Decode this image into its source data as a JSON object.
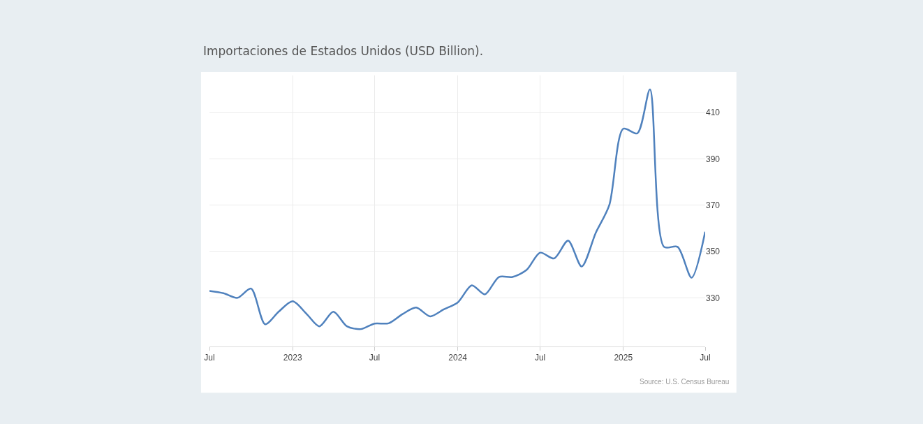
{
  "chart_data": {
    "type": "line",
    "title": "Importaciones de Estados Unidos (USD Billion).",
    "x": [
      "2022-07",
      "2022-08",
      "2022-09",
      "2022-10",
      "2022-11",
      "2022-12",
      "2023-01",
      "2023-02",
      "2023-03",
      "2023-04",
      "2023-05",
      "2023-06",
      "2023-07",
      "2023-08",
      "2023-09",
      "2023-10",
      "2023-11",
      "2023-12",
      "2024-01",
      "2024-02",
      "2024-03",
      "2024-04",
      "2024-05",
      "2024-06",
      "2024-07",
      "2024-08",
      "2024-09",
      "2024-10",
      "2024-11",
      "2024-12",
      "2025-01",
      "2025-02",
      "2025-03",
      "2025-04",
      "2025-05",
      "2025-06",
      "2025-07"
    ],
    "series": [
      {
        "color": "#4f81bd",
        "values": [
          333,
          332,
          330,
          334,
          318.6,
          324,
          328.5,
          323,
          317.7,
          324,
          317.7,
          316.5,
          318.9,
          319,
          323,
          325.8,
          322,
          325,
          328,
          335.4,
          331.5,
          339,
          339,
          342,
          349.5,
          347,
          354.7,
          343.5,
          358,
          370,
          403,
          401,
          420,
          352,
          352,
          338.7,
          358.5
        ]
      }
    ],
    "xlim": [
      "2022-07-01",
      "2025-07-01"
    ],
    "xticks": [
      {
        "value": "2022-07-01",
        "label": "Jul"
      },
      {
        "value": "2023-01-01",
        "label": "2023"
      },
      {
        "value": "2023-07-01",
        "label": "Jul"
      },
      {
        "value": "2024-01-01",
        "label": "2024"
      },
      {
        "value": "2024-07-01",
        "label": "Jul"
      },
      {
        "value": "2025-01-01",
        "label": "2025"
      },
      {
        "value": "2025-07-01",
        "label": "Jul"
      }
    ],
    "ylim": [
      309,
      426
    ],
    "yticks": [
      330,
      350,
      370,
      390,
      410
    ],
    "grid": true,
    "marker": "none",
    "line_style": "solid",
    "annotations": [
      "Source: U.S. Census Bureau"
    ]
  }
}
